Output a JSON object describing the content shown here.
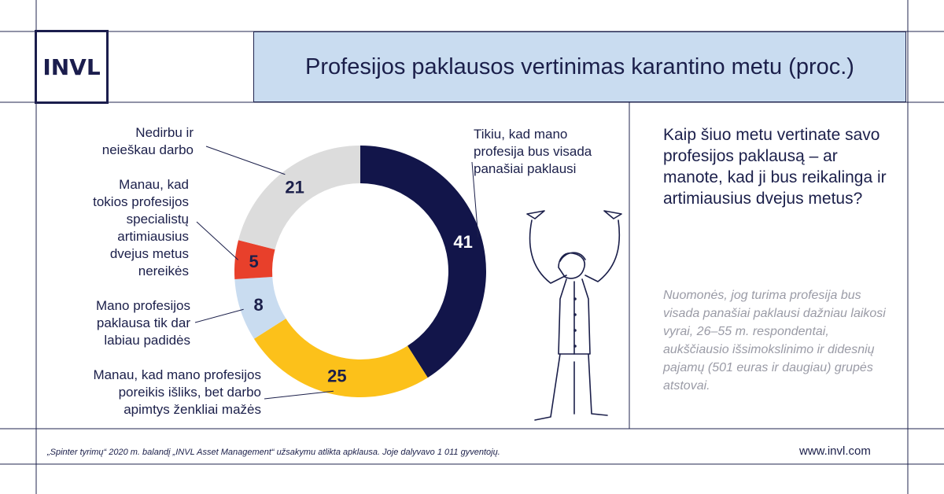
{
  "logo": {
    "text": "INVL"
  },
  "title": "Profesijos paklausos vertinimas karantino metu (proc.)",
  "chart_data": {
    "type": "pie",
    "subtype": "donut",
    "slices": [
      {
        "label": "Tikiu, kad mano profesija bus visada panašiai paklausi",
        "value": 41,
        "color": "#12154a"
      },
      {
        "label": "Manau, kad mano profesijos poreikis išliks, bet darbo apimtys ženkliai mažės",
        "value": 25,
        "color": "#fcc11a"
      },
      {
        "label": "Mano profesijos paklausa tik dar labiau padidės",
        "value": 8,
        "color": "#c9dcf0"
      },
      {
        "label": "Manau, kad tokios profesijos specialistų artimiausius dvejus metus nereikės",
        "value": 5,
        "color": "#e8402b"
      },
      {
        "label": "Nedirbu ir neieškau darbo",
        "value": 21,
        "color": "#dcdcdc"
      }
    ]
  },
  "labels": {
    "slice0": [
      "Tikiu, kad mano",
      "profesija bus visada",
      "panašiai paklausi"
    ],
    "slice1": [
      "Manau, kad mano profesijos",
      "poreikis išliks, bet darbo",
      "apimtys ženkliai mažės"
    ],
    "slice2": [
      "Mano profesijos",
      "paklausa tik dar",
      "labiau padidės"
    ],
    "slice3": [
      "Manau, kad",
      "tokios profesijos",
      "specialistų",
      "artimiausius",
      "dvejus metus",
      "nereikės"
    ],
    "slice4": [
      "Nedirbu ir",
      "neieškau darbo"
    ]
  },
  "question": "Kaip šiuo metu vertinate savo profesijos paklausą – ar manote, kad ji bus reikalinga ir artimiausius dvejus metus?",
  "note": "Nuomonės, jog turima profesija bus visada panašiai paklausi dažniau laikosi vyrai, 26–55 m. respondentai, aukščiausio išsimokslinimo ir didesnių pajamų (501 euras ir daugiau) grupės atstovai.",
  "footnote": "„Spinter tyrimų“ 2020 m. balandį „INVL Asset Management“ užsakymu atlikta apklausa. Joje dalyvavo 1 011 gyventojų.",
  "website": "www.invl.com"
}
